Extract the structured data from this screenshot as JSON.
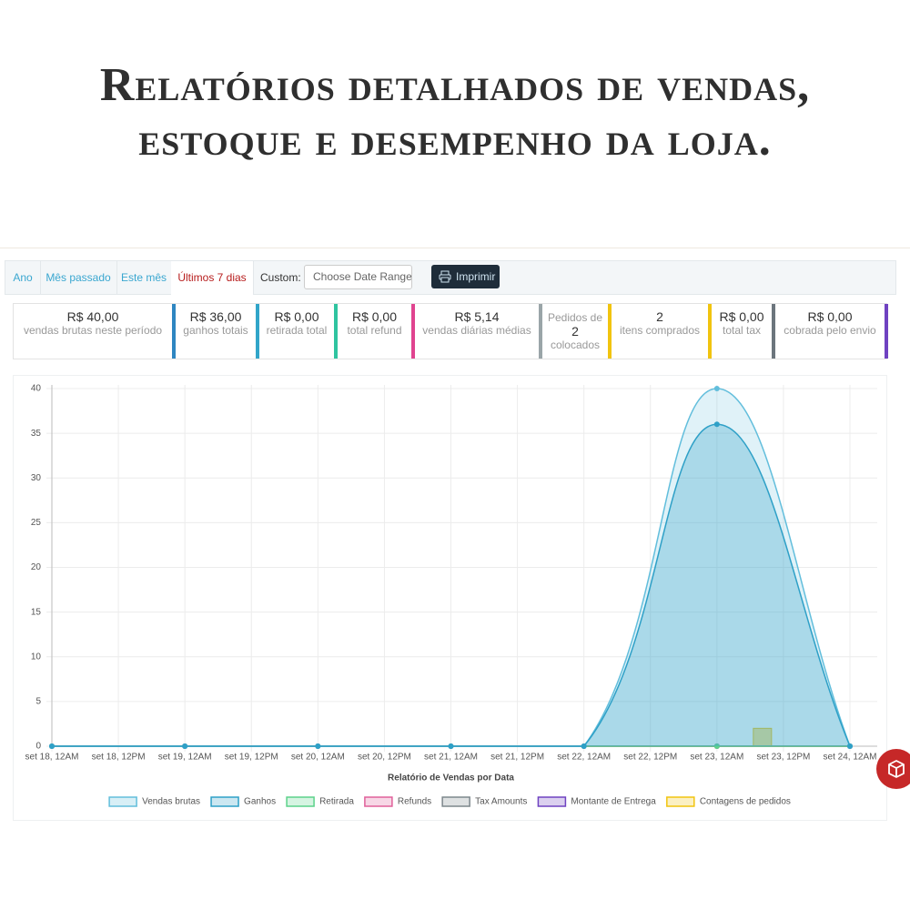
{
  "header": {
    "lines": [
      "Relatórios detalhados de vendas,",
      "estoque e desempenho da loja."
    ]
  },
  "tabs": {
    "items": [
      "Ano",
      "Mês passado",
      "Este mês",
      "Últimos 7 dias"
    ],
    "active": 3,
    "custom_label": "Custom:",
    "date_placeholder": "Choose Date Range",
    "print_button": "Imprimir"
  },
  "stats": [
    {
      "value": "R$ 40,00",
      "label": "vendas brutas neste período",
      "color": "#2e86c1"
    },
    {
      "value": "R$ 36,00",
      "label": "ganhos totais",
      "color": "#31a5c9"
    },
    {
      "value": "R$ 0,00",
      "label": "retirada total",
      "color": "#2fc4a0"
    },
    {
      "value": "R$ 0,00",
      "label": "total refund",
      "color": "#e0448f"
    },
    {
      "value": "R$ 5,14",
      "label": "vendas diárias médias",
      "color": "#9aa5a8"
    },
    {
      "pre": "Pedidos de",
      "value": "2",
      "label": "colocados",
      "color": "#f1c40f"
    },
    {
      "value": "2",
      "label": "itens comprados",
      "color": "#f1c40f"
    },
    {
      "value": "R$ 0,00",
      "label": "total tax",
      "color": "#6c757d"
    },
    {
      "value": "R$ 0,00",
      "label": "cobrada pelo envio",
      "color": "#6f42c1"
    }
  ],
  "chart": {
    "type": "line",
    "x_axis_label": "Relatório de Vendas por Data",
    "xticks": [
      "set 18, 12AM",
      "set 18, 12PM",
      "set 19, 12AM",
      "set 19, 12PM",
      "set 20, 12AM",
      "set 20, 12PM",
      "set 21, 12AM",
      "set 21, 12PM",
      "set 22, 12AM",
      "set 22, 12PM",
      "set 23, 12AM",
      "set 23, 12PM",
      "set 24, 12AM"
    ],
    "x": [
      "set 18, 12AM",
      "set 19, 12AM",
      "set 20, 12AM",
      "set 21, 12AM",
      "set 22, 12AM",
      "set 23, 12AM",
      "set 24, 12AM"
    ],
    "ylim": [
      0,
      40
    ],
    "yticks": [
      0,
      5,
      10,
      15,
      20,
      25,
      30,
      35,
      40
    ],
    "grid": true,
    "series": [
      {
        "name": "Vendas brutas",
        "color": "#62bedc",
        "fill": true,
        "values": [
          0,
          0,
          0,
          0,
          0,
          40,
          0
        ]
      },
      {
        "name": "Ganhos",
        "color": "#2ea0c7",
        "fill": true,
        "values": [
          0,
          0,
          0,
          0,
          0,
          36,
          0
        ]
      },
      {
        "name": "Retirada",
        "color": "#5cd28a",
        "fill": false,
        "values": [
          0,
          0,
          0,
          0,
          0,
          0,
          0
        ]
      },
      {
        "name": "Refunds",
        "color": "#e0609a",
        "fill": false,
        "values": [
          0,
          0,
          0,
          0,
          0,
          0,
          0
        ]
      },
      {
        "name": "Tax Amounts",
        "color": "#7d878c",
        "fill": false,
        "values": [
          0,
          0,
          0,
          0,
          0,
          0,
          0
        ]
      },
      {
        "name": "Montante de Entrega",
        "color": "#6f42c1",
        "fill": false,
        "values": [
          0,
          0,
          0,
          0,
          0,
          0,
          0
        ]
      },
      {
        "name": "Contagens de pedidos",
        "color": "#f1c40f",
        "type": "bar",
        "values": [
          0,
          0,
          0,
          0,
          0,
          2,
          0
        ]
      }
    ]
  }
}
